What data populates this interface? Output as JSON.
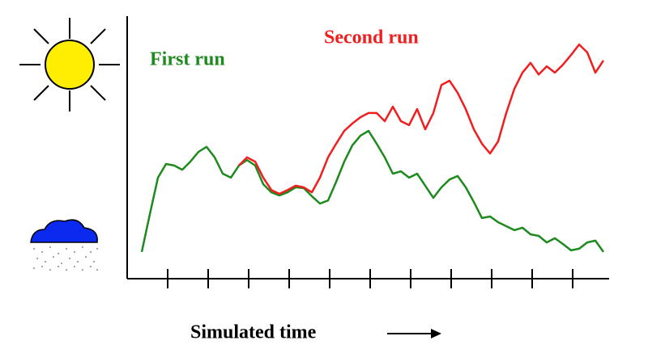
{
  "chart_data": {
    "type": "line",
    "xlabel": "Simulated time",
    "x": [
      1.8,
      2.8,
      3.8,
      4.8,
      5.8,
      6.8,
      7.8,
      8.8,
      9.8,
      10.8,
      11.8,
      12.8,
      13.8,
      14.8,
      15.8,
      16.8,
      17.8,
      18.8,
      19.8,
      20.8,
      21.8,
      22.8,
      23.8,
      24.8,
      25.8,
      26.8,
      27.8,
      28.8,
      29.8,
      30.8,
      31.8,
      32.8,
      33.8,
      34.8,
      35.8,
      36.8,
      37.8,
      38.8,
      39.8,
      40.8,
      41.8,
      42.8,
      43.8,
      44.8,
      45.8,
      46.8,
      47.8,
      48.8,
      49.8,
      50.8,
      51.8,
      52.8,
      53.8,
      54.8,
      55.8,
      56.8,
      57.8,
      58.8
    ],
    "series": [
      {
        "name": "First run",
        "color": "#1e8a1e",
        "values": [
          10.2,
          24.6,
          38.5,
          43.7,
          43.1,
          41.5,
          44.6,
          48.3,
          50.2,
          46.2,
          40,
          38.5,
          43.1,
          45.2,
          43.1,
          36,
          32.9,
          31.7,
          32.9,
          34.8,
          34.5,
          31.4,
          28.6,
          29.8,
          36.9,
          44.6,
          50.8,
          54.5,
          56.3,
          51.4,
          46.2,
          40,
          40.9,
          38.5,
          40,
          35.4,
          30.8,
          34.8,
          37.8,
          39.1,
          34.8,
          29.2,
          23.1,
          23.7,
          21.5,
          20,
          18.5,
          19.4,
          16.9,
          16.3,
          13.8,
          15.4,
          13.2,
          10.8,
          11.4,
          13.8,
          14.5,
          10.2
        ]
      },
      {
        "name": "Second run",
        "color": "#f01e1e",
        "values": [
          null,
          null,
          null,
          null,
          null,
          null,
          null,
          null,
          null,
          null,
          null,
          null,
          43.1,
          46.2,
          44.6,
          38.5,
          33.8,
          32.3,
          33.8,
          35.4,
          34.8,
          32.9,
          38.5,
          46.2,
          51.4,
          56.3,
          59.1,
          61.5,
          63.1,
          63.1,
          60,
          65.5,
          60,
          58.5,
          64.6,
          56.9,
          63.1,
          73.8,
          75.4,
          70.8,
          64.6,
          56.9,
          51.4,
          47.7,
          52.3,
          63.1,
          72.3,
          78.5,
          82.2,
          77.8,
          80.9,
          78.5,
          81.5,
          85.2,
          89.2,
          86.2,
          78.5,
          83.1
        ]
      }
    ],
    "xlim": [
      0,
      59.5
    ],
    "ylim": [
      0,
      100
    ],
    "xticks": [
      5,
      10,
      15,
      20,
      25,
      30,
      35,
      40,
      45,
      50,
      55
    ]
  }
}
